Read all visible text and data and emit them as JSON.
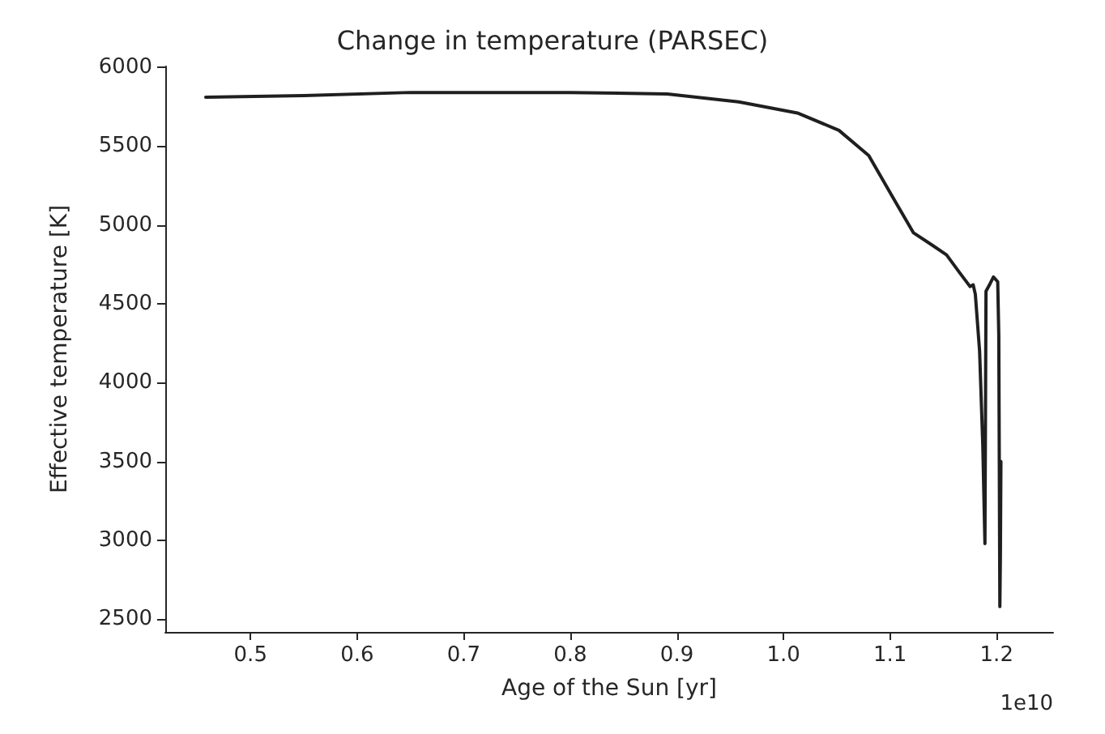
{
  "chart_data": {
    "type": "line",
    "title": "Change in temperature (PARSEC)",
    "xlabel": "Age of the Sun [yr]",
    "ylabel": "Effective temperature [K]",
    "annotations": [
      "1e10"
    ],
    "x": [
      0.458,
      0.55,
      0.65,
      0.729,
      0.8,
      0.891,
      0.958,
      1.013,
      1.052,
      1.08,
      1.103,
      1.122,
      1.14,
      1.153,
      1.165,
      1.175,
      1.178,
      1.18,
      1.184,
      1.187,
      1.189,
      1.19,
      1.194,
      1.197,
      1.201,
      1.202,
      1.203,
      1.2035,
      1.204
    ],
    "series": [
      {
        "color": "#1f1f1f",
        "values": [
          5810,
          5820,
          5840,
          5840,
          5840,
          5830,
          5780,
          5710,
          5600,
          5440,
          5170,
          4950,
          4870,
          4810,
          4700,
          4610,
          4620,
          4560,
          4200,
          3600,
          2980,
          4580,
          4630,
          4670,
          4640,
          4300,
          2580,
          2900,
          3500
        ]
      }
    ],
    "xlim": [
      0.42,
      1.253
    ],
    "xticks": [
      0.5,
      0.6,
      0.7,
      0.8,
      0.9,
      {
        "value": 1,
        "label": "1.0"
      },
      1.1,
      1.2
    ],
    "ylim": [
      2420,
      6005
    ],
    "yticks": [
      2500,
      3000,
      3500,
      4000,
      4500,
      5000,
      5500,
      6000
    ],
    "grid": false,
    "marker": "none",
    "line_style": "solid"
  }
}
